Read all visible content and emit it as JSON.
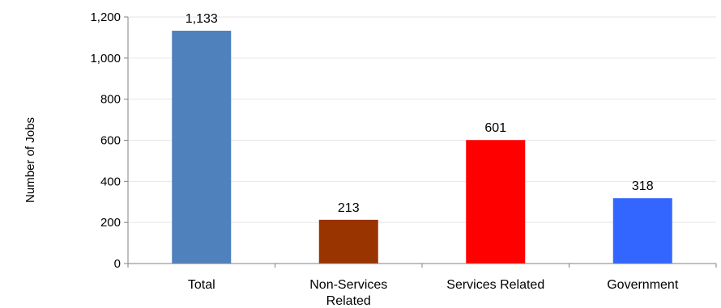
{
  "chart_data": {
    "type": "bar",
    "ylabel": "Number of Jobs",
    "xlabel": "",
    "ylim": [
      0,
      1200
    ],
    "yticks": [
      0,
      200,
      400,
      600,
      800,
      1000,
      1200
    ],
    "ytick_labels": [
      "0",
      "200",
      "400",
      "600",
      "800",
      "1,000",
      "1,200"
    ],
    "categories": [
      {
        "lines": [
          "Total"
        ]
      },
      {
        "lines": [
          "Non-Services",
          "Related"
        ]
      },
      {
        "lines": [
          "Services Related"
        ]
      },
      {
        "lines": [
          "Government"
        ]
      }
    ],
    "values": [
      1133,
      213,
      601,
      318
    ],
    "value_labels": [
      "1,133",
      "213",
      "601",
      "318"
    ],
    "colors": [
      "#4F81BD",
      "#993300",
      "#FF0000",
      "#3366FF"
    ],
    "grid": true,
    "legend": "none"
  }
}
